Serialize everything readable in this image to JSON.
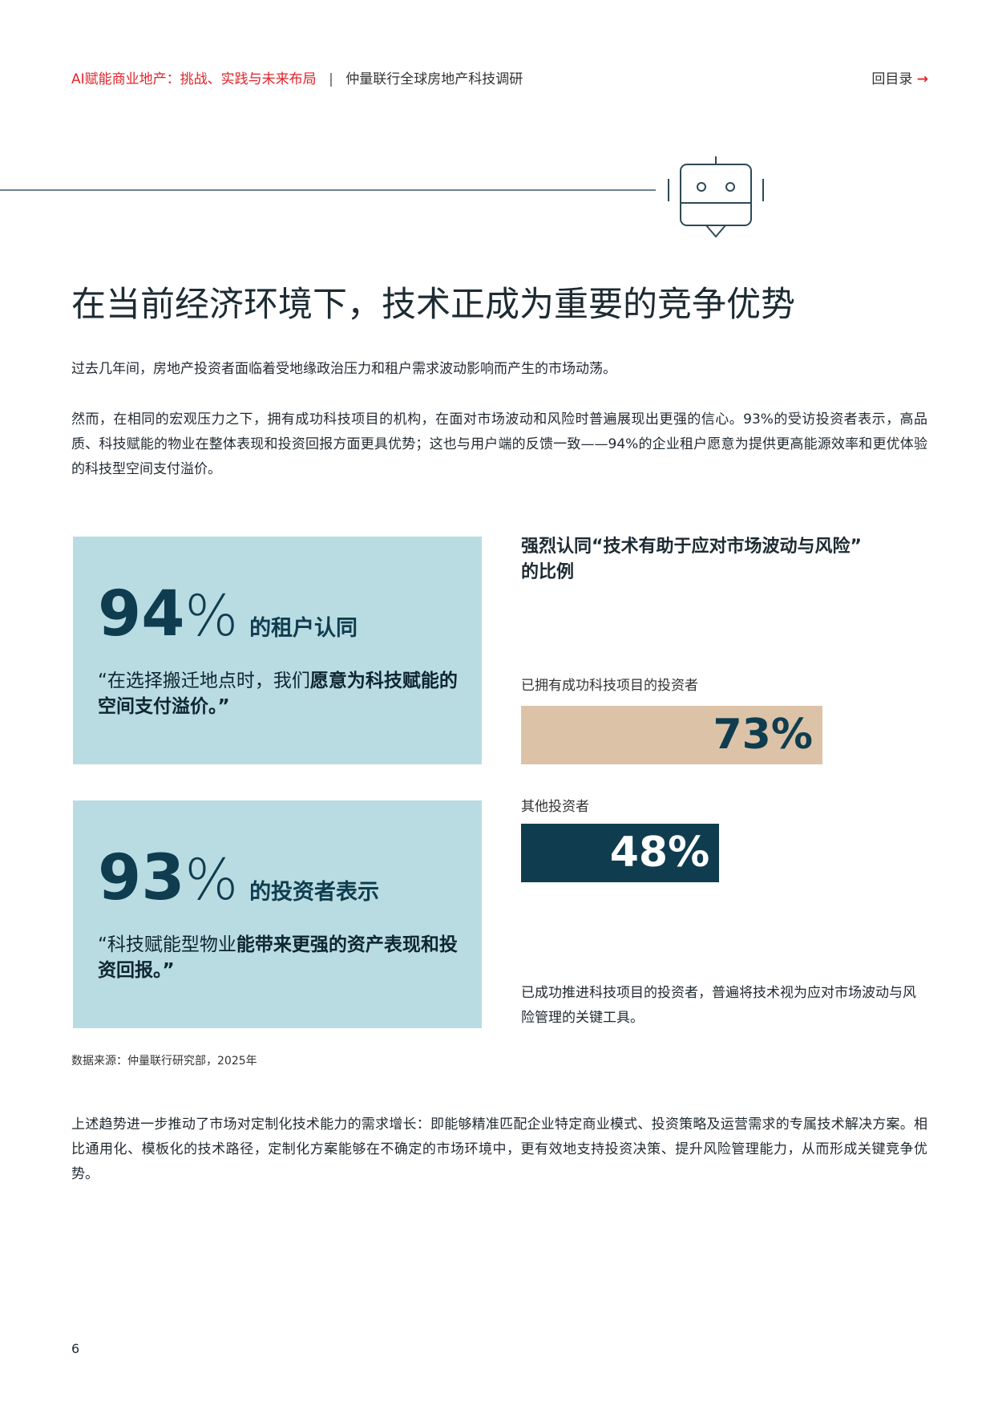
{
  "header": {
    "title": "AI赋能商业地产：挑战、实践与未来布局",
    "separator": "|",
    "subtitle": "仲量联行全球房地产科技调研",
    "toc": "回目录",
    "toc_arrow": "→"
  },
  "heading": "在当前经济环境下，技术正成为重要的竞争优势",
  "paragraphs": [
    "过去几年间，房地产投资者面临着受地缘政治压力和租户需求波动影响而产生的市场动荡。",
    "然而，在相同的宏观压力之下，拥有成功科技项目的机构，在面对市场波动和风险时普遍展现出更强的信心。93%的受访投资者表示，高品质、科技赋能的物业在整体表现和投资回报方面更具优势；这也与用户端的反馈一致——94%的企业租户愿意为提供更高能源效率和更优体验的科技型空间支付溢价。"
  ],
  "stat_boxes": [
    {
      "number": "94",
      "unit": "%",
      "label": "的租户认同",
      "quote_normal": "“在选择搬迁地点时，我们",
      "quote_bold": "愿意为科技赋能的空间支付溢价。”"
    },
    {
      "number": "93",
      "unit": "%",
      "label": "的投资者表示",
      "quote_normal": "“科技赋能型物业",
      "quote_bold": "能带来更强的资产表现和投资回报。”"
    }
  ],
  "chart_data": {
    "type": "bar",
    "orientation": "horizontal",
    "title": "强烈认同“技术有助于应对市场波动与风险”的比例",
    "categories": [
      "已拥有成功科技项目的投资者",
      "其他投资者"
    ],
    "values": [
      73,
      48
    ],
    "value_labels": [
      "73%",
      "48%"
    ],
    "colors": [
      "#dcc3a8",
      "#0f3d4f"
    ],
    "label_colors": [
      "#0f3d4f",
      "#ffffff"
    ],
    "xlim": [
      0,
      100
    ],
    "note": "已成功推进科技项目的投资者，普遍将技术视为应对市场波动与风险管理的关键工具。"
  },
  "source": "数据来源：仲量联行研究部，2025年",
  "closing": "上述趋势进一步推动了市场对定制化技术能力的需求增长：即能够精准匹配企业特定商业模式、投资策略及运营需求的专属技术解决方案。相比通用化、模板化的技术路径，定制化方案能够在不确定的市场环境中，更有效地支持投资决策、提升风险管理能力，从而形成关键竞争优势。",
  "page_number": "6"
}
